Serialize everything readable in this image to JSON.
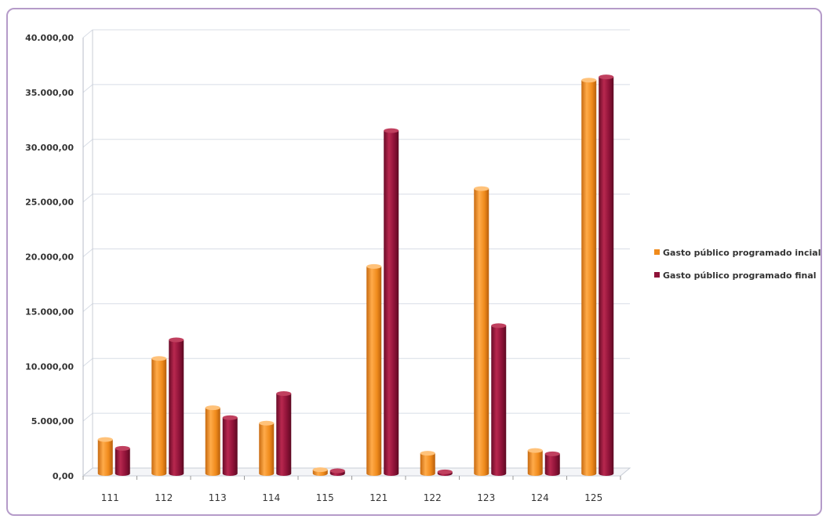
{
  "chart_data": {
    "type": "bar",
    "categories": [
      "111",
      "112",
      "113",
      "114",
      "115",
      "121",
      "122",
      "123",
      "124",
      "125"
    ],
    "series": [
      {
        "name": "Gasto público programado incial",
        "color": "#f08b1c",
        "values": [
          3100,
          10500,
          6000,
          4600,
          350,
          18900,
          1850,
          26000,
          2100,
          35900
        ]
      },
      {
        "name": "Gasto público programado final",
        "color": "#8e1238",
        "values": [
          2300,
          12200,
          5100,
          7300,
          250,
          31300,
          150,
          13500,
          1800,
          36200
        ]
      }
    ],
    "ylim": [
      0,
      40000
    ],
    "ytick_labels": [
      "0,00",
      "5.000,00",
      "10.000,00",
      "15.000,00",
      "20.000,00",
      "25.000,00",
      "30.000,00",
      "35.000,00",
      "40.000,00"
    ],
    "ytick_values": [
      0,
      5000,
      10000,
      15000,
      20000,
      25000,
      30000,
      35000,
      40000
    ],
    "grid": true,
    "legend_position": "right",
    "title": "",
    "xlabel": "",
    "ylabel": ""
  }
}
